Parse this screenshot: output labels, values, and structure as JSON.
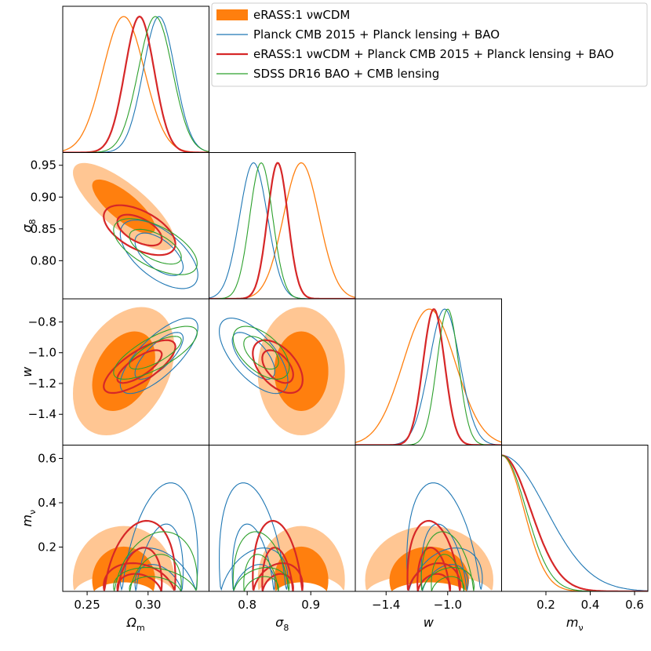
{
  "chart_data": {
    "type": "triangle-corner-plot",
    "parameters": [
      {
        "key": "om",
        "label": "Ω",
        "sub": "m",
        "range": [
          0.23,
          0.35
        ],
        "ticks": [
          "0.25",
          "0.30"
        ],
        "tick_values": [
          0.25,
          0.3
        ]
      },
      {
        "key": "s8",
        "label": "σ",
        "sub": "8",
        "range": [
          0.74,
          0.97
        ],
        "ticks": [
          "0.8",
          "0.9"
        ],
        "tick_values": [
          0.8,
          0.9
        ],
        "yticks": [
          "0.80",
          "0.85",
          "0.90",
          "0.95"
        ],
        "ytick_values": [
          0.8,
          0.85,
          0.9,
          0.95
        ]
      },
      {
        "key": "w",
        "label": "w",
        "sub": "",
        "range": [
          -1.6,
          -0.65
        ],
        "ticks": [
          "−1.4",
          "−1.0"
        ],
        "tick_values": [
          -1.4,
          -1.0
        ],
        "yticks": [
          "−0.8",
          "−1.0",
          "−1.2",
          "−1.4"
        ],
        "ytick_values": [
          -0.8,
          -1.0,
          -1.2,
          -1.4
        ]
      },
      {
        "key": "mnu",
        "label": "m",
        "sub": "ν",
        "range": [
          0.0,
          0.66
        ],
        "ticks": [
          "0.2",
          "0.4",
          "0.6"
        ],
        "tick_values": [
          0.2,
          0.4,
          0.6
        ],
        "yticks": [
          "0.2",
          "0.4",
          "0.6"
        ],
        "ytick_values": [
          0.2,
          0.4,
          0.6
        ]
      }
    ],
    "legend": [
      {
        "label": "eRASS:1 νwCDM",
        "color": "#ff7f0e",
        "style": "filled"
      },
      {
        "label": "Planck CMB 2015 + Planck lensing + BAO",
        "color": "#1f77b4",
        "style": "line"
      },
      {
        "label": "eRASS:1 νwCDM + Planck CMB 2015 + Planck lensing + BAO",
        "color": "#d62728",
        "style": "thick-line"
      },
      {
        "label": "SDSS DR16 BAO + CMB lensing",
        "color": "#2ca02c",
        "style": "line"
      }
    ],
    "series": [
      {
        "name": "eRASS:1 νwCDM",
        "color": "#ff7f0e",
        "light": "#ffc693",
        "mean": {
          "om": 0.28,
          "s8": 0.885,
          "w": -1.12,
          "mnu": 0.05
        },
        "sigma": {
          "om": 0.017,
          "s8": 0.028,
          "w": 0.17,
          "mnu": 0.1
        },
        "rho": {
          "om-s8": -0.78,
          "om-w": 0.35,
          "s8-w": 0.0,
          "om-mnu": 0,
          "s8-mnu": 0,
          "w-mnu": 0
        },
        "one_sided": {
          "mnu": true
        },
        "filled": true,
        "line_width": 1.2
      },
      {
        "name": "Planck CMB 2015 + Planck lensing + BAO",
        "color": "#1f77b4",
        "mean": {
          "om": 0.309,
          "s8": 0.81,
          "w": -1.02,
          "mnu": 0.0
        },
        "sigma": {
          "om": 0.013,
          "s8": 0.022,
          "w": 0.1,
          "mnu": 0.2
        },
        "rho": {
          "om-s8": -0.6,
          "om-w": 0.75,
          "s8-w": -0.65,
          "om-mnu": 0.3,
          "s8-mnu": -0.3,
          "w-mnu": -0.3
        },
        "one_sided": {
          "mnu": true
        },
        "filled": false,
        "line_width": 1.1
      },
      {
        "name": "eRASS:1 νwCDM + Planck CMB 2015 + Planck lensing + BAO",
        "color": "#d62728",
        "mean": {
          "om": 0.293,
          "s8": 0.848,
          "w": -1.09,
          "mnu": 0.0
        },
        "sigma": {
          "om": 0.012,
          "s8": 0.016,
          "w": 0.07,
          "mnu": 0.13
        },
        "rho": {
          "om-s8": -0.55,
          "om-w": 0.75,
          "s8-w": -0.5,
          "om-mnu": 0.2,
          "s8-mnu": -0.2,
          "w-mnu": -0.2
        },
        "one_sided": {
          "mnu": true
        },
        "filled": false,
        "line_width": 2.2
      },
      {
        "name": "SDSS DR16 BAO + CMB lensing",
        "color": "#2ca02c",
        "mean": {
          "om": 0.306,
          "s8": 0.822,
          "w": -1.0,
          "mnu": 0.0
        },
        "sigma": {
          "om": 0.014,
          "s8": 0.018,
          "w": 0.07,
          "mnu": 0.11
        },
        "rho": {
          "om-s8": -0.6,
          "om-w": 0.75,
          "s8-w": -0.55,
          "om-mnu": 0.2,
          "s8-mnu": -0.2,
          "w-mnu": -0.2
        },
        "one_sided": {
          "mnu": true
        },
        "filled": false,
        "line_width": 1.1
      }
    ]
  }
}
